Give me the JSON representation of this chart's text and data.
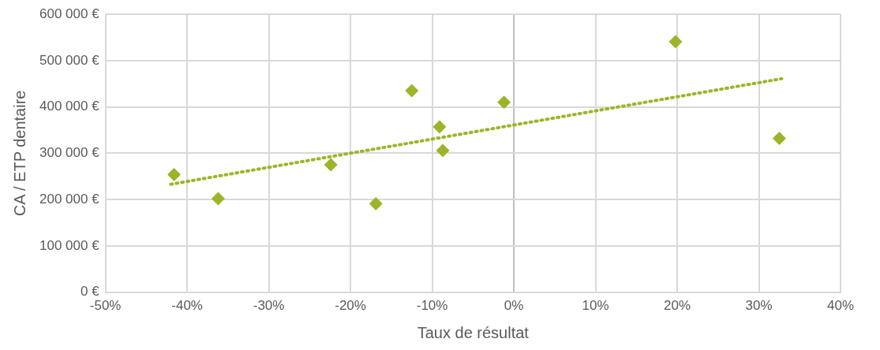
{
  "chart_data": {
    "type": "scatter",
    "xlabel": "Taux de résultat",
    "ylabel": "CA / ETP dentaire",
    "xlim": [
      -50,
      40
    ],
    "xticks": [
      {
        "value": -50,
        "label": "-50%"
      },
      {
        "value": -40,
        "label": "-40%"
      },
      {
        "value": -30,
        "label": "-30%"
      },
      {
        "value": -20,
        "label": "-20%"
      },
      {
        "value": -10,
        "label": "-10%"
      },
      {
        "value": 0,
        "label": "0%"
      },
      {
        "value": 10,
        "label": "10%"
      },
      {
        "value": 20,
        "label": "20%"
      },
      {
        "value": 30,
        "label": "30%"
      },
      {
        "value": 40,
        "label": "40%"
      }
    ],
    "ylim": [
      0,
      600000
    ],
    "yticks": [
      {
        "value": 0,
        "label": "0 €"
      },
      {
        "value": 100000,
        "label": "100 000 €"
      },
      {
        "value": 200000,
        "label": "200 000 €"
      },
      {
        "value": 300000,
        "label": "300 000 €"
      },
      {
        "value": 400000,
        "label": "400 000 €"
      },
      {
        "value": 500000,
        "label": "500 000 €"
      },
      {
        "value": 600000,
        "label": "600 000 €"
      }
    ],
    "grid": true,
    "legend": false,
    "series": [
      {
        "type": "scatter",
        "color": "#9bb52a",
        "marker": "diamond",
        "x": [
          -41.6,
          -36.2,
          -22.4,
          -16.9,
          -12.5,
          -9.1,
          -8.7,
          -1.2,
          19.8,
          32.5
        ],
        "values": [
          254000,
          202000,
          275000,
          191000,
          435000,
          357000,
          306000,
          410000,
          541000,
          332000
        ]
      },
      {
        "type": "line",
        "color": "#9bb52a",
        "marker": "none",
        "line_style": "dotted",
        "x": [
          -42,
          32.8
        ],
        "values": [
          233000,
          461000
        ]
      }
    ]
  }
}
